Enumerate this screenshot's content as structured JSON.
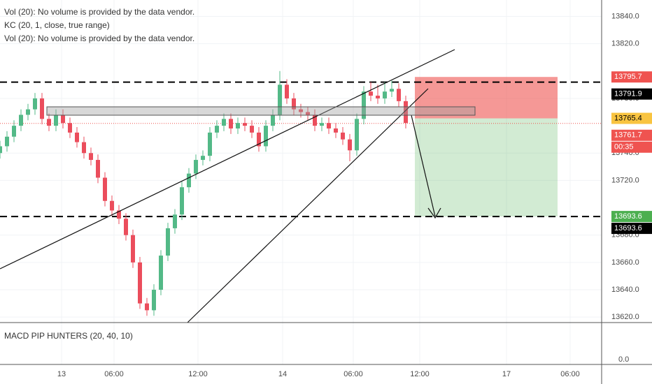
{
  "chart_data": {
    "type": "candlestick",
    "legend_lines": [
      "Vol (20): No volume is provided by the data vendor.",
      "KC (20, 1, close, true range)",
      "Vol (20): No volume is provided by the data vendor."
    ],
    "macd_label": "MACD PIP HUNTERS (20, 40, 10)",
    "macd_yticks": [
      {
        "value": 0,
        "label": "0.0"
      }
    ],
    "x": [
      0,
      2,
      4,
      6,
      8,
      10,
      12,
      14,
      16,
      18,
      20,
      22,
      24,
      26,
      28,
      30,
      32,
      34,
      36,
      38,
      40,
      42,
      44,
      46,
      48,
      50,
      52,
      54,
      56,
      58,
      60,
      62,
      64,
      66,
      68,
      70,
      72,
      74,
      76,
      78,
      80,
      82,
      84,
      86,
      88,
      90,
      92,
      94,
      96,
      98,
      100,
      102,
      104,
      106,
      108,
      110,
      112,
      114,
      116
    ],
    "open": [
      13740,
      13745,
      13752,
      13760,
      13768,
      13772,
      13780,
      13765,
      13760,
      13768,
      13762,
      13755,
      13748,
      13740,
      13735,
      13722,
      13705,
      13698,
      13692,
      13680,
      13660,
      13630,
      13625,
      13640,
      13665,
      13685,
      13695,
      13715,
      13725,
      13735,
      13738,
      13755,
      13760,
      13765,
      13758,
      13762,
      13760,
      13755,
      13745,
      13760,
      13768,
      13790,
      13780,
      13772,
      13770,
      13768,
      13760,
      13762,
      13758,
      13755,
      13750,
      13742,
      13765,
      13785,
      13782,
      13780,
      13785,
      13787,
      13778
    ],
    "high": [
      13749,
      13756,
      13764,
      13772,
      13776,
      13784,
      13784,
      13769,
      13772,
      13772,
      13766,
      13759,
      13752,
      13744,
      13739,
      13726,
      13709,
      13702,
      13696,
      13684,
      13664,
      13634,
      13644,
      13669,
      13689,
      13699,
      13719,
      13729,
      13739,
      13742,
      13759,
      13764,
      13769,
      13769,
      13766,
      13766,
      13764,
      13759,
      13764,
      13772,
      13800,
      13794,
      13784,
      13776,
      13774,
      13772,
      13766,
      13766,
      13762,
      13759,
      13754,
      13769,
      13789,
      13792,
      13790,
      13792,
      13793,
      13791,
      13782
    ],
    "low": [
      13736,
      13741,
      13748,
      13756,
      13764,
      13768,
      13761,
      13756,
      13756,
      13758,
      13751,
      13744,
      13736,
      13731,
      13718,
      13701,
      13694,
      13688,
      13676,
      13656,
      13626,
      13621,
      13621,
      13636,
      13661,
      13681,
      13691,
      13711,
      13721,
      13731,
      13734,
      13751,
      13756,
      13754,
      13754,
      13756,
      13751,
      13741,
      13741,
      13756,
      13764,
      13776,
      13768,
      13766,
      13764,
      13756,
      13756,
      13754,
      13751,
      13746,
      13734,
      13738,
      13761,
      13778,
      13776,
      13776,
      13781,
      13774,
      13758
    ],
    "close": [
      13745,
      13752,
      13760,
      13768,
      13772,
      13780,
      13765,
      13760,
      13768,
      13762,
      13755,
      13748,
      13740,
      13735,
      13722,
      13705,
      13698,
      13692,
      13680,
      13660,
      13630,
      13625,
      13640,
      13665,
      13685,
      13695,
      13715,
      13725,
      13735,
      13738,
      13755,
      13760,
      13765,
      13758,
      13762,
      13760,
      13755,
      13745,
      13760,
      13768,
      13790,
      13780,
      13772,
      13770,
      13768,
      13760,
      13762,
      13758,
      13755,
      13750,
      13742,
      13765,
      13785,
      13782,
      13780,
      13785,
      13787,
      13778,
      13762
    ],
    "up_color": "#53b987",
    "down_color": "#eb4d5c",
    "xlim": [
      0,
      172
    ],
    "xticks": [
      {
        "value": 17.6,
        "label": "13"
      },
      {
        "value": 32.6,
        "label": "06:00"
      },
      {
        "value": 56.6,
        "label": "12:00"
      },
      {
        "value": 80.8,
        "label": "14"
      },
      {
        "value": 101,
        "label": "06:00"
      },
      {
        "value": 120,
        "label": "12:00"
      },
      {
        "value": 144.8,
        "label": "17"
      },
      {
        "value": 163,
        "label": "06:00"
      }
    ],
    "ylim": [
      13616,
      13852
    ],
    "yticks": [
      {
        "value": 13840,
        "label": "13840.0"
      },
      {
        "value": 13820,
        "label": "13820.0"
      },
      {
        "value": 13780,
        "label": "13780.0"
      },
      {
        "value": 13740,
        "label": "13740.0"
      },
      {
        "value": 13720,
        "label": "13720.0"
      },
      {
        "value": 13680,
        "label": "13680.0"
      },
      {
        "value": 13660,
        "label": "13660.0"
      },
      {
        "value": 13640,
        "label": "13640.0"
      },
      {
        "value": 13620,
        "label": "13620.0"
      }
    ],
    "grid": true,
    "levels": [
      {
        "value": 13795.7,
        "color": "#ef5350"
      },
      {
        "value": 13791.9,
        "color": "#000000"
      },
      {
        "value": 13765.4,
        "color": "#f9c440"
      },
      {
        "value": 13761.7,
        "color": "#ef5350"
      },
      {
        "value": 13693.6,
        "color": "#4caf50"
      },
      {
        "value": 13693.6,
        "color": "#000000"
      }
    ],
    "countdown": "00:35"
  }
}
